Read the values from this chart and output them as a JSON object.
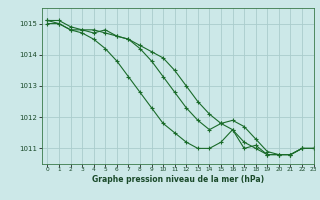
{
  "background_color": "#cce8e8",
  "grid_color": "#aacccc",
  "line_color": "#1a6b2a",
  "xlabel": "Graphe pression niveau de la mer (hPa)",
  "xlim": [
    -0.5,
    23
  ],
  "ylim": [
    1010.5,
    1015.5
  ],
  "yticks": [
    1011,
    1012,
    1013,
    1014,
    1015
  ],
  "xticks": [
    0,
    1,
    2,
    3,
    4,
    5,
    6,
    7,
    8,
    9,
    10,
    11,
    12,
    13,
    14,
    15,
    16,
    17,
    18,
    19,
    20,
    21,
    22,
    23
  ],
  "series": [
    [
      1015.0,
      1015.0,
      1014.8,
      1014.8,
      1014.7,
      1014.8,
      1014.6,
      1014.5,
      1014.3,
      1014.1,
      1013.9,
      1013.5,
      1013.0,
      1012.5,
      1012.1,
      1011.8,
      1011.6,
      1011.0,
      1011.1,
      1010.8,
      1010.8,
      1010.8,
      1011.0,
      1011.0
    ],
    [
      1015.1,
      1015.0,
      1014.8,
      1014.7,
      1014.5,
      1014.2,
      1013.8,
      1013.3,
      1012.8,
      1012.3,
      1011.8,
      1011.5,
      1011.2,
      1011.0,
      1011.0,
      1011.2,
      1011.6,
      1011.2,
      1011.0,
      1010.8,
      1010.8,
      1010.8,
      1011.0,
      1011.0
    ],
    [
      1015.1,
      1015.1,
      1014.9,
      1014.8,
      1014.8,
      1014.7,
      1014.6,
      1014.5,
      1014.2,
      1013.8,
      1013.3,
      1012.8,
      1012.3,
      1011.9,
      1011.6,
      1011.8,
      1011.9,
      1011.7,
      1011.3,
      1010.9,
      1010.8,
      1010.8,
      1011.0,
      1011.0
    ]
  ]
}
